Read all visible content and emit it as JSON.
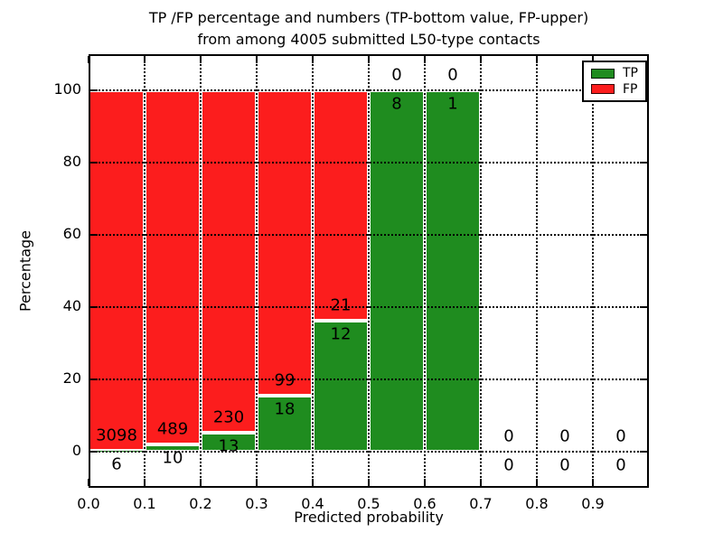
{
  "chart_data": {
    "type": "bar",
    "stacked": true,
    "title_line1": "TP /FP percentage and numbers (TP-bottom value, FP-upper)",
    "title_line2": "from among 4005 submitted L50-type contacts",
    "xlabel": "Predicted probability",
    "ylabel": "Percentage",
    "xlim": [
      0.0,
      1.0
    ],
    "ylim": [
      -10,
      110
    ],
    "xticks": [
      "0.0",
      "0.1",
      "0.2",
      "0.3",
      "0.4",
      "0.5",
      "0.6",
      "0.7",
      "0.8",
      "0.9"
    ],
    "yticks": [
      "0",
      "20",
      "40",
      "60",
      "80",
      "100"
    ],
    "grid": true,
    "legend": {
      "position": "upper right",
      "entries": [
        {
          "label": "TP",
          "color": "#1f8c1f"
        },
        {
          "label": "FP",
          "color": "#fc1d1d"
        }
      ]
    },
    "colors": {
      "tp": "#1f8c1f",
      "fp": "#fc1d1d",
      "grid": "#000000",
      "background": "#ffffff"
    },
    "bins": [
      {
        "range": [
          0.0,
          0.1
        ],
        "tp": 6,
        "fp": 3098
      },
      {
        "range": [
          0.1,
          0.2
        ],
        "tp": 10,
        "fp": 489
      },
      {
        "range": [
          0.2,
          0.3
        ],
        "tp": 13,
        "fp": 230
      },
      {
        "range": [
          0.3,
          0.4
        ],
        "tp": 18,
        "fp": 99
      },
      {
        "range": [
          0.4,
          0.5
        ],
        "tp": 12,
        "fp": 21
      },
      {
        "range": [
          0.5,
          0.6
        ],
        "tp": 8,
        "fp": 0
      },
      {
        "range": [
          0.6,
          0.7
        ],
        "tp": 1,
        "fp": 0
      },
      {
        "range": [
          0.7,
          0.8
        ],
        "tp": 0,
        "fp": 0
      },
      {
        "range": [
          0.8,
          0.9
        ],
        "tp": 0,
        "fp": 0
      },
      {
        "range": [
          0.9,
          1.0
        ],
        "tp": 0,
        "fp": 0
      }
    ]
  }
}
